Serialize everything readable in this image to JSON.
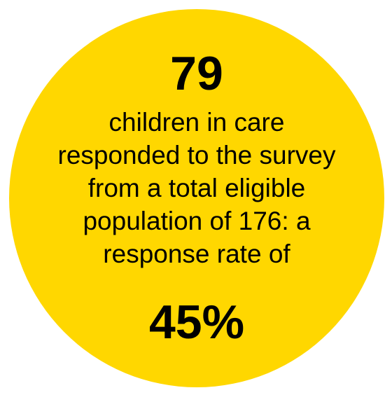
{
  "stat": {
    "count": "79",
    "description_lines": [
      "children in care",
      "responded to the survey",
      "from a total eligible",
      "population of 176: a",
      "response rate of"
    ],
    "percent": "45%",
    "circle_color": "#ffd700",
    "text_color": "#000000"
  }
}
